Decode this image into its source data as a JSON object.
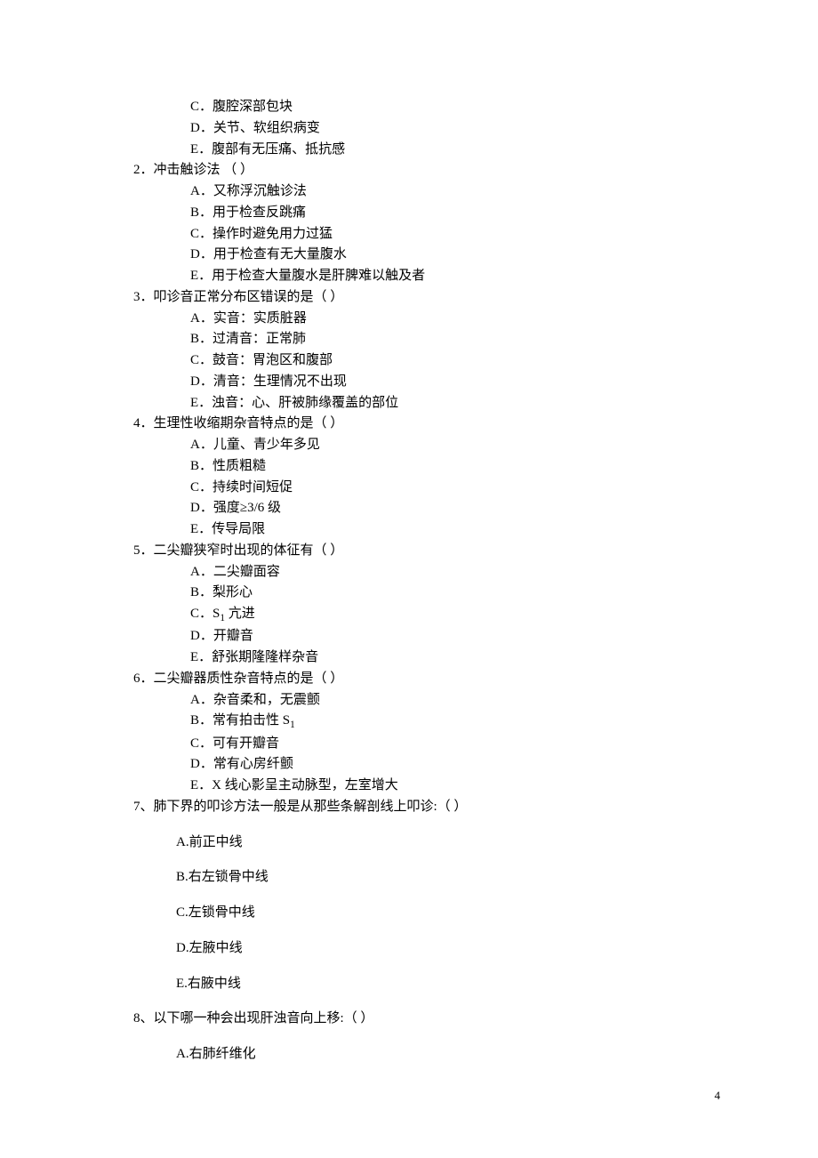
{
  "page_number": "4",
  "q1_continued": {
    "opt_c": "C．腹腔深部包块",
    "opt_d": "D．关节、软组织病变",
    "opt_e": "E．腹部有无压痛、抵抗感"
  },
  "q2": {
    "stem": "2．冲击触诊法 （    ）",
    "opt_a": "A．又称浮沉触诊法",
    "opt_b": "B．用于检查反跳痛",
    "opt_c": "C．操作时避免用力过猛",
    "opt_d": "D．用于检查有无大量腹水",
    "opt_e": "E．用于检查大量腹水是肝脾难以触及者"
  },
  "q3": {
    "stem": "3．叩诊音正常分布区错误的是（    ）",
    "opt_a": "A．实音：实质脏器",
    "opt_b": "B．过清音：正常肺",
    "opt_c": "C．鼓音：胃泡区和腹部",
    "opt_d": "D．清音：生理情况不出现",
    "opt_e": "E．浊音：心、肝被肺缘覆盖的部位"
  },
  "q4": {
    "stem": "4．生理性收缩期杂音特点的是（    ）",
    "opt_a": "A．儿童、青少年多见",
    "opt_b": "B．性质粗糙",
    "opt_c": "C．持续时间短促",
    "opt_d": "D．强度≥3/6 级",
    "opt_e": "E．传导局限"
  },
  "q5": {
    "stem": "5．二尖瓣狭窄时出现的体征有（    ）",
    "opt_a": "A．二尖瓣面容",
    "opt_b": "B．梨形心",
    "opt_c_pre": "C．S",
    "opt_c_sub": "1",
    "opt_c_post": " 亢进",
    "opt_d": "D．开瓣音",
    "opt_e": "E．舒张期隆隆样杂音"
  },
  "q6": {
    "stem": "6．二尖瓣器质性杂音特点的是（    ）",
    "opt_a": "A．杂音柔和，无震颤",
    "opt_b_pre": "B．常有拍击性 S",
    "opt_b_sub": "1",
    "opt_c": "C．可有开瓣音",
    "opt_d": "D．常有心房纤颤",
    "opt_e": "E．X 线心影呈主动脉型，左室增大"
  },
  "q7": {
    "stem": "7、肺下界的叩诊方法一般是从那些条解剖线上叩诊:（    ）",
    "opt_a": "A.前正中线",
    "opt_b": "B.右左锁骨中线",
    "opt_c": "C.左锁骨中线",
    "opt_d": "D.左腋中线",
    "opt_e": "E.右腋中线"
  },
  "q8": {
    "stem": "8、以下哪一种会出现肝浊音向上移:（    ）",
    "opt_a": "A.右肺纤维化"
  }
}
